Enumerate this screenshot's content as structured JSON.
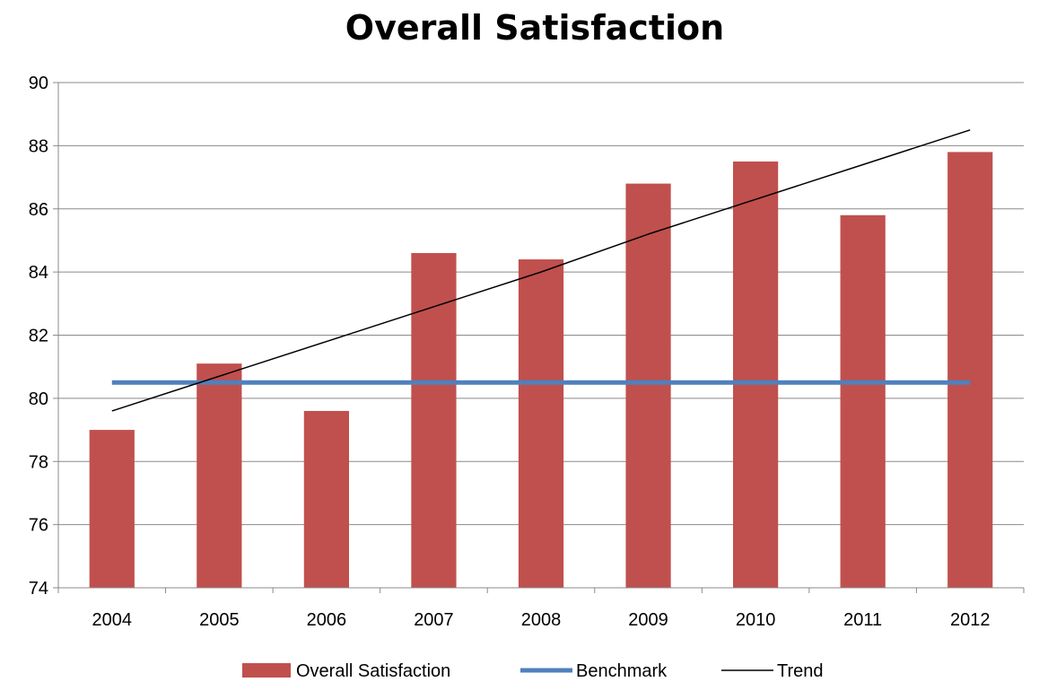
{
  "chart_data": {
    "type": "bar",
    "title": "Overall Satisfaction",
    "xlabel": "",
    "ylabel": "",
    "categories": [
      "2004",
      "2005",
      "2006",
      "2007",
      "2008",
      "2009",
      "2010",
      "2011",
      "2012"
    ],
    "ylim": [
      74,
      90
    ],
    "yticks": [
      "74",
      "76",
      "78",
      "80",
      "82",
      "84",
      "86",
      "88",
      "90"
    ],
    "grid": true,
    "legend_position": "bottom",
    "series": [
      {
        "name": "Overall Satisfaction",
        "type": "bar",
        "color": "#c0504d",
        "values": [
          79.0,
          81.1,
          79.6,
          84.6,
          84.4,
          86.8,
          87.5,
          85.8,
          87.8
        ]
      },
      {
        "name": "Benchmark",
        "type": "line",
        "color": "#4f81bd",
        "values": [
          80.5,
          80.5,
          80.5,
          80.5,
          80.5,
          80.5,
          80.5,
          80.5,
          80.5
        ]
      },
      {
        "name": "Trend",
        "type": "line",
        "color": "#000000",
        "values": [
          79.6,
          80.7,
          81.8,
          82.9,
          84.0,
          85.2,
          86.3,
          87.4,
          88.5
        ]
      }
    ]
  }
}
